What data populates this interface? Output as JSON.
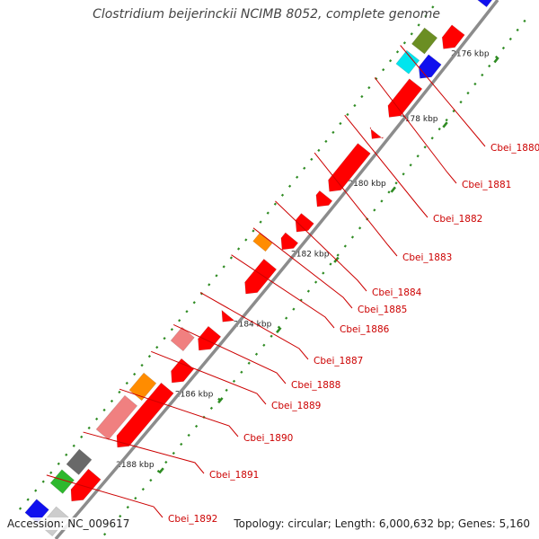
{
  "title": "Clostridium beijerinckii NCIMB 8052, complete genome",
  "footer": {
    "accession": "Accession: NC_009617",
    "summary": "Topology: circular; Length: 6,000,632 bp; Genes: 5,160"
  },
  "colors": {
    "backbone": "#8c8c8c",
    "tick": "#2e8b22",
    "gene_label": "#cc0000",
    "red": "#ff0000",
    "blue": "#1010ee",
    "orange": "#ff8c00",
    "olive": "#6b8e23",
    "cyan": "#00e5ee",
    "pink": "#f08080",
    "gray": "#696969",
    "green": "#2eb82e",
    "lightgray": "#cccccc"
  },
  "kbp_labels": [
    "2176 kbp",
    "2178 kbp",
    "2180 kbp",
    "2182 kbp",
    "2184 kbp",
    "2186 kbp",
    "2188 kbp"
  ],
  "gene_labels": [
    "Cbei_1880",
    "Cbei_1881",
    "Cbei_1882",
    "Cbei_1883",
    "Cbei_1884",
    "Cbei_1885",
    "Cbei_1886",
    "Cbei_1887",
    "Cbei_1888",
    "Cbei_1889",
    "Cbei_1890",
    "Cbei_1891",
    "Cbei_1892"
  ]
}
